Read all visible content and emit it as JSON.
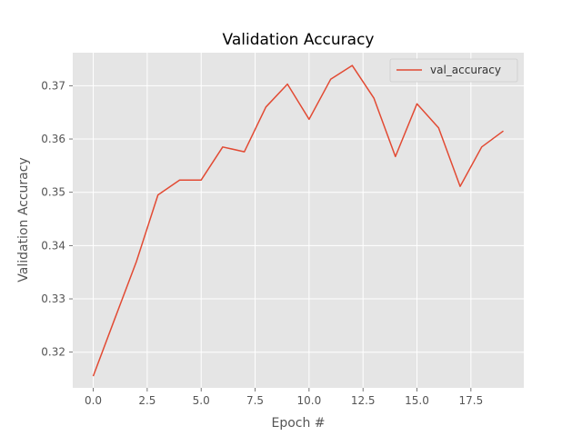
{
  "chart_data": {
    "type": "line",
    "title": "Validation Accuracy",
    "xlabel": "Epoch #",
    "ylabel": "Validation Accuracy",
    "xlim": [
      -0.95,
      19.95
    ],
    "ylim": [
      0.3133,
      0.3762
    ],
    "x_ticks": [
      0.0,
      2.5,
      5.0,
      7.5,
      10.0,
      12.5,
      15.0,
      17.5
    ],
    "x_tick_labels": [
      "0.0",
      "2.5",
      "5.0",
      "7.5",
      "10.0",
      "12.5",
      "15.0",
      "17.5"
    ],
    "y_ticks": [
      0.32,
      0.33,
      0.34,
      0.35,
      0.36,
      0.37
    ],
    "y_tick_labels": [
      "0.32",
      "0.33",
      "0.34",
      "0.35",
      "0.36",
      "0.37"
    ],
    "grid": true,
    "legend_position": "top-right",
    "series": [
      {
        "name": "val_accuracy",
        "color": "#E24A33",
        "x": [
          0,
          1,
          2,
          3,
          4,
          5,
          6,
          7,
          8,
          9,
          10,
          11,
          12,
          13,
          14,
          15,
          16,
          17,
          18,
          19
        ],
        "values": [
          0.3155,
          0.3263,
          0.337,
          0.3495,
          0.3523,
          0.3523,
          0.3585,
          0.3576,
          0.366,
          0.3703,
          0.3637,
          0.3712,
          0.3738,
          0.3677,
          0.3567,
          0.3666,
          0.3621,
          0.3511,
          0.3585,
          0.3615
        ]
      }
    ],
    "colors": {
      "plot_background": "#E5E5E5",
      "grid": "#FFFFFF",
      "line": "#E24A33"
    }
  }
}
